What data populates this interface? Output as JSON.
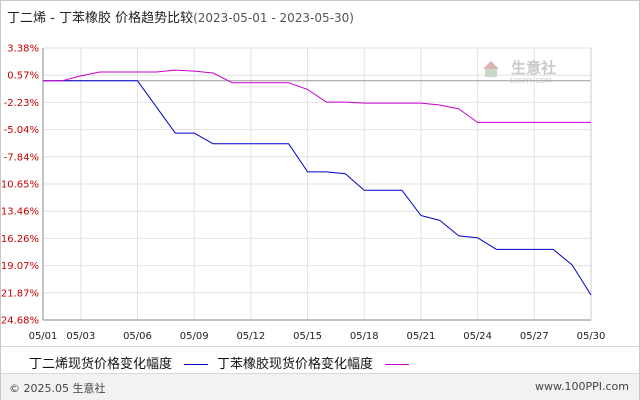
{
  "header": {
    "title": "丁二烯 - 丁苯橡胶 价格趋势比较",
    "date_range": "(2023-05-01 - 2023-05-30)"
  },
  "watermark": {
    "name": "生意社",
    "url": "100PPI.COM"
  },
  "footer": {
    "copyright": "© 2025.05 生意社",
    "site": "www.100PPI.com"
  },
  "legend": [
    {
      "label": "丁二烯现货价格变化幅度",
      "color": "#0000cc"
    },
    {
      "label": "丁苯橡胶现货价格变化幅度",
      "color": "#cc00cc"
    }
  ],
  "chart_data": {
    "type": "line",
    "x_ticks": [
      "05/01",
      "05/03",
      "05/06",
      "05/09",
      "05/12",
      "05/15",
      "05/18",
      "05/21",
      "05/24",
      "05/27",
      "05/30"
    ],
    "y_ticks": [
      "3.38%",
      "0.57%",
      "-2.23%",
      "-5.04%",
      "-7.84%",
      "-10.65%",
      "-13.46%",
      "-16.26%",
      "-19.07%",
      "-21.87%",
      "-24.68%"
    ],
    "ylim": [
      -24.68,
      3.38
    ],
    "grid": true,
    "legend_position": "bottom",
    "series": [
      {
        "name": "丁二烯现货价格变化幅度",
        "color": "#0000cc",
        "x": [
          "05/01",
          "05/02",
          "05/03",
          "05/04",
          "05/05",
          "05/06",
          "05/07",
          "05/08",
          "05/09",
          "05/10",
          "05/11",
          "05/12",
          "05/13",
          "05/14",
          "05/15",
          "05/16",
          "05/17",
          "05/18",
          "05/19",
          "05/20",
          "05/21",
          "05/22",
          "05/23",
          "05/24",
          "05/25",
          "05/26",
          "05/27",
          "05/28",
          "05/29",
          "05/30"
        ],
        "y": [
          0,
          0,
          0,
          0,
          0,
          0,
          -2.7,
          -5.4,
          -5.4,
          -6.5,
          -6.5,
          -6.5,
          -6.5,
          -6.5,
          -9.4,
          -9.4,
          -9.6,
          -11.3,
          -11.3,
          -11.3,
          -13.9,
          -14.4,
          -16.0,
          -16.2,
          -17.4,
          -17.4,
          -17.4,
          -17.4,
          -19.0,
          -22.1
        ]
      },
      {
        "name": "丁苯橡胶现货价格变化幅度",
        "color": "#cc00cc",
        "x": [
          "05/01",
          "05/02",
          "05/03",
          "05/04",
          "05/05",
          "05/06",
          "05/07",
          "05/08",
          "05/09",
          "05/10",
          "05/11",
          "05/12",
          "05/13",
          "05/14",
          "05/15",
          "05/16",
          "05/17",
          "05/18",
          "05/19",
          "05/20",
          "05/21",
          "05/22",
          "05/23",
          "05/24",
          "05/25",
          "05/26",
          "05/27",
          "05/28",
          "05/29",
          "05/30"
        ],
        "y": [
          0,
          0,
          0.5,
          0.9,
          0.9,
          0.9,
          0.9,
          1.1,
          1.0,
          0.8,
          -0.2,
          -0.2,
          -0.2,
          -0.2,
          -0.9,
          -2.2,
          -2.2,
          -2.3,
          -2.3,
          -2.3,
          -2.3,
          -2.5,
          -2.9,
          -4.3,
          -4.3,
          -4.3,
          -4.3,
          -4.3,
          -4.3,
          -4.3
        ]
      }
    ]
  }
}
